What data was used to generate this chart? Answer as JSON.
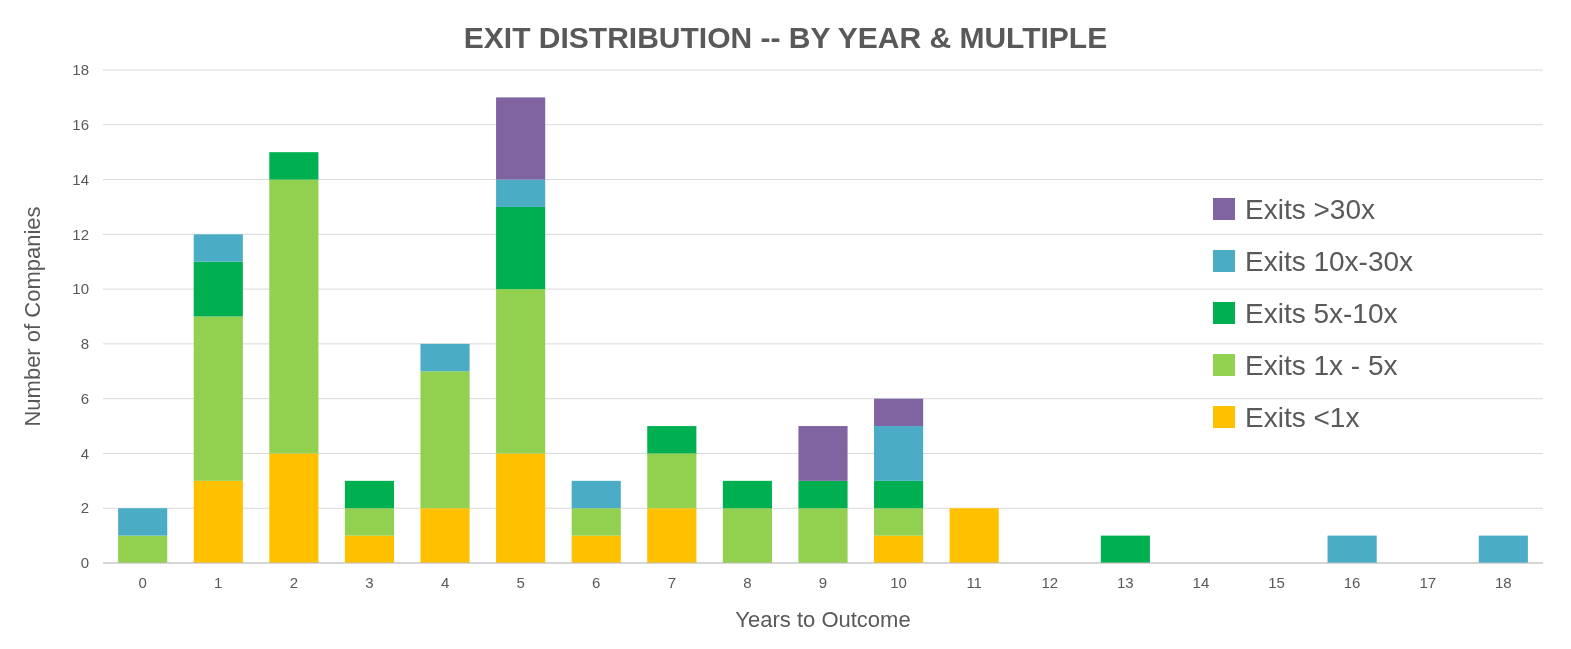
{
  "chart_data": {
    "type": "bar",
    "stacked": true,
    "title": "EXIT DISTRIBUTION -- BY YEAR & MULTIPLE",
    "xlabel": "Years to Outcome",
    "ylabel": "Number of Companies",
    "categories": [
      "0",
      "1",
      "2",
      "3",
      "4",
      "5",
      "6",
      "7",
      "8",
      "9",
      "10",
      "11",
      "12",
      "13",
      "14",
      "15",
      "16",
      "17",
      "18"
    ],
    "series": [
      {
        "name": "Exits <1x",
        "color": "#ffc000",
        "values": [
          0,
          3,
          4,
          1,
          2,
          4,
          1,
          2,
          0,
          0,
          1,
          2,
          0,
          0,
          0,
          0,
          0,
          0,
          0
        ]
      },
      {
        "name": "Exits 1x - 5x",
        "color": "#92d050",
        "values": [
          1,
          6,
          10,
          1,
          5,
          6,
          1,
          2,
          2,
          2,
          1,
          0,
          0,
          0,
          0,
          0,
          0,
          0,
          0
        ]
      },
      {
        "name": "Exits 5x-10x",
        "color": "#00b050",
        "values": [
          0,
          2,
          1,
          1,
          0,
          3,
          0,
          1,
          1,
          1,
          1,
          0,
          0,
          1,
          0,
          0,
          0,
          0,
          0
        ]
      },
      {
        "name": "Exits 10x-30x",
        "color": "#4bacc6",
        "values": [
          1,
          1,
          0,
          0,
          1,
          1,
          1,
          0,
          0,
          0,
          2,
          0,
          0,
          0,
          0,
          0,
          1,
          0,
          1
        ]
      },
      {
        "name": "Exits >30x",
        "color": "#8064a2",
        "values": [
          0,
          0,
          0,
          0,
          0,
          3,
          0,
          0,
          0,
          2,
          1,
          0,
          0,
          0,
          0,
          0,
          0,
          0,
          0
        ]
      }
    ],
    "ylim": [
      0,
      18
    ],
    "yticks": [
      0,
      2,
      4,
      6,
      8,
      10,
      12,
      14,
      16,
      18
    ],
    "grid": "y",
    "legend": "right"
  }
}
